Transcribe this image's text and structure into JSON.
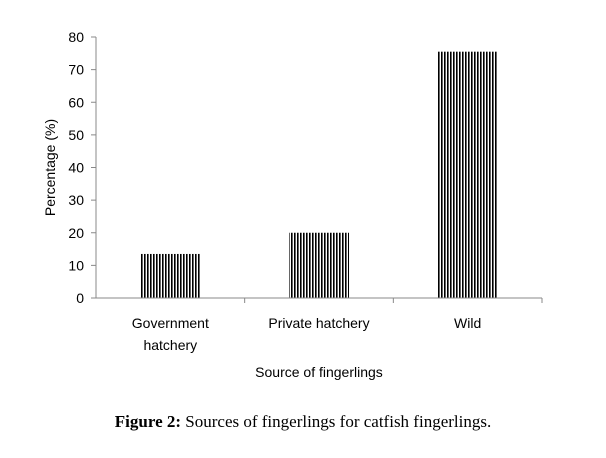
{
  "chart_data": {
    "type": "bar",
    "categories": [
      "Government hatchery",
      "Private hatchery",
      "Wild"
    ],
    "category_lines": [
      [
        "Government",
        "hatchery"
      ],
      [
        "Private hatchery"
      ],
      [
        "Wild"
      ]
    ],
    "values": [
      13.5,
      20,
      75.5
    ],
    "xlabel": "Source of fingerlings",
    "ylabel": "Percentage (%)",
    "ylim": [
      0,
      80
    ],
    "yticks": [
      0,
      10,
      20,
      30,
      40,
      50,
      60,
      70,
      80
    ],
    "grid": false,
    "legend": "none",
    "bar_fill": "vertical-hatch",
    "bar_color": "#000000"
  },
  "caption": {
    "label": "Figure 2:",
    "text": " Sources of fingerlings for catfish fingerlings."
  }
}
